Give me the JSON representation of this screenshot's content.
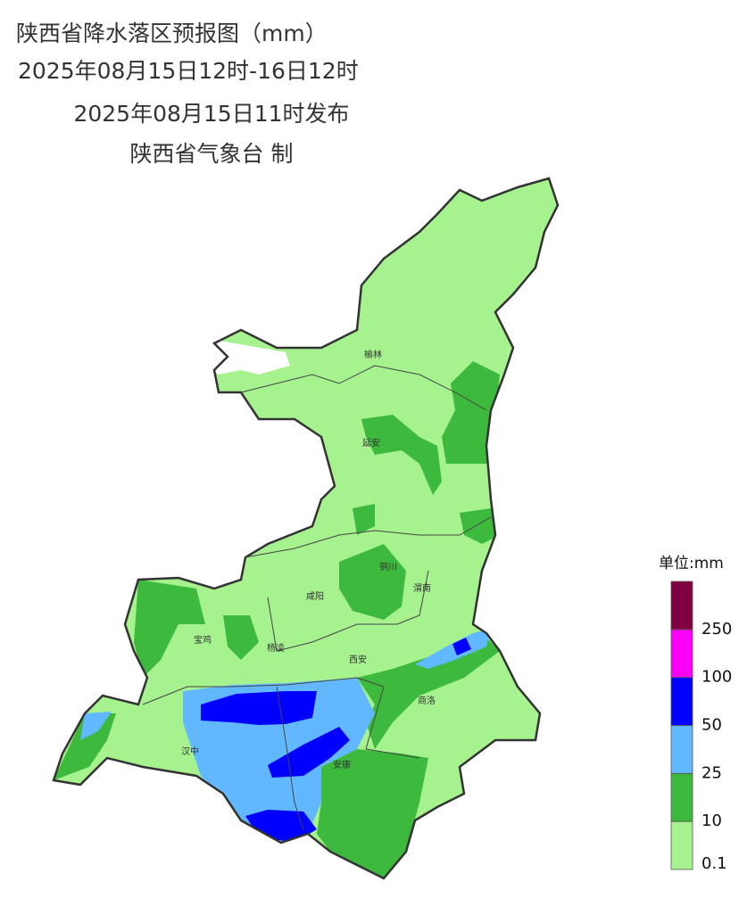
{
  "header": {
    "title": "陕西省降水落区预报图（mm）",
    "period": "2025年08月15日12时-16日12时",
    "issued": "2025年08月15日11时发布",
    "issuer": "陕西省气象台 制"
  },
  "cities": [
    "榆林",
    "延安",
    "铜川",
    "咸阳",
    "渭南",
    "宝鸡",
    "杨凌",
    "西安",
    "商洛",
    "汉中",
    "安康"
  ],
  "legend": {
    "title": "单位:mm",
    "levels": [
      {
        "value": 0.1,
        "color": "#a6f28f"
      },
      {
        "value": 10,
        "color": "#3dba3d"
      },
      {
        "value": 25,
        "color": "#61b8ff"
      },
      {
        "value": 50,
        "color": "#0000fe"
      },
      {
        "value": 100,
        "color": "#fa00fa"
      },
      {
        "value": 250,
        "color": "#800040"
      }
    ]
  }
}
